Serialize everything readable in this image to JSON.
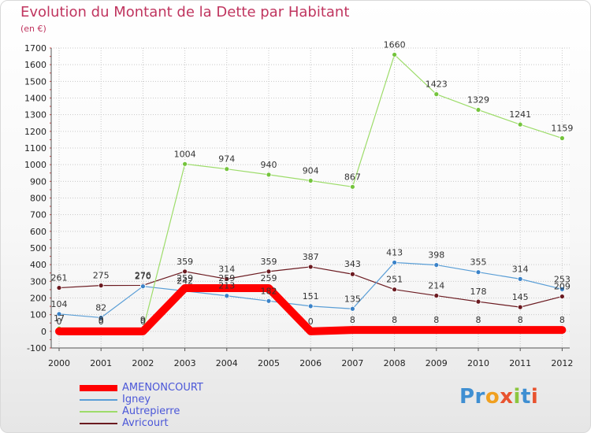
{
  "title": "Evolution du Montant de la Dette par Habitant",
  "subtitle": "(en €)",
  "logo_text": "Proxiti",
  "chart_data": {
    "type": "line",
    "x": [
      "2000",
      "2001",
      "2002",
      "2003",
      "2004",
      "2005",
      "2006",
      "2007",
      "2008",
      "2009",
      "2010",
      "2011",
      "2012"
    ],
    "ylim": [
      -100,
      1700
    ],
    "yticks": [
      -100,
      0,
      100,
      200,
      300,
      400,
      500,
      600,
      700,
      800,
      900,
      1000,
      1100,
      1200,
      1300,
      1400,
      1500,
      1600,
      1700
    ],
    "grid": true,
    "legend_position": "bottom-left",
    "series": [
      {
        "name": "Avricourt",
        "color": "#6b1a20",
        "marker": "#6b1a20",
        "values": [
          261,
          275,
          276,
          359,
          314,
          359,
          387,
          343,
          251,
          214,
          178,
          145,
          209
        ],
        "labels": [
          "261",
          "275",
          "276",
          "359",
          "314",
          "359",
          "387",
          "343",
          "251",
          "214",
          "178",
          "145",
          "209"
        ]
      },
      {
        "name": "Igney",
        "color": "#5a9ed6",
        "marker": "#3a82c8",
        "values": [
          104,
          82,
          270,
          242,
          213,
          182,
          151,
          135,
          413,
          398,
          355,
          314,
          253
        ],
        "labels": [
          "104",
          "82",
          "270",
          "242",
          "213",
          "182",
          "151",
          "135",
          "413",
          "398",
          "355",
          "314",
          "253"
        ]
      },
      {
        "name": "Autrepierre",
        "color": "#9ddc6a",
        "marker": "#74c43c",
        "values": [
          17,
          9,
          9,
          1004,
          974,
          940,
          904,
          867,
          1660,
          1423,
          1329,
          1241,
          1159
        ],
        "labels": [
          "17",
          "9",
          "9",
          "1004",
          "974",
          "940",
          "904",
          "867",
          "1660",
          "1423",
          "1329",
          "1241",
          "1159"
        ]
      },
      {
        "name": "AMENONCOURT",
        "color": "#ff0000",
        "marker": "#ff0000",
        "thick": true,
        "values": [
          0,
          0,
          0,
          259,
          259,
          259,
          0,
          8,
          8,
          8,
          8,
          8,
          8
        ],
        "labels": [
          "0",
          "0",
          "0",
          "259",
          "259",
          "259",
          "0",
          "8",
          "8",
          "8",
          "8",
          "8",
          "8"
        ]
      }
    ],
    "legend_order": [
      "AMENONCOURT",
      "Igney",
      "Autrepierre",
      "Avricourt"
    ]
  }
}
